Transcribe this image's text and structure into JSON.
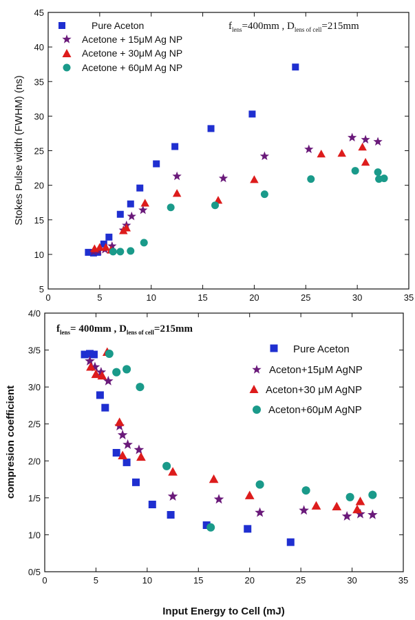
{
  "colors": {
    "square": "#1f2fd0",
    "star": "#6a1a7a",
    "triangle": "#dd1c1c",
    "circle": "#1a9a8a"
  },
  "chart_data": [
    {
      "type": "scatter",
      "xlabel": "",
      "ylabel": "Stokes Pulse width (FWHM) (ns)",
      "xlim": [
        0,
        35
      ],
      "ylim": [
        5,
        45
      ],
      "xticks": [
        "0",
        "5",
        "10",
        "15",
        "20",
        "25",
        "30",
        "35"
      ],
      "yticks": [
        "5",
        "10",
        "15",
        "20",
        "25",
        "30",
        "35",
        "40",
        "45"
      ],
      "annotation": {
        "f_letter": "f",
        "f_sub": "lens",
        "f_value": "=400mm , ",
        "d_letter": "D",
        "d_sub": "lens of cell",
        "d_value": "=215mm"
      },
      "legend_position": "top-left",
      "series": [
        {
          "name": "Pure Aceton",
          "marker": "square",
          "x": [
            3.9,
            4.4,
            4.8,
            5.4,
            5.9,
            7.0,
            8.0,
            8.9,
            10.5,
            12.3,
            15.8,
            19.8,
            24.0
          ],
          "y": [
            10.3,
            10.2,
            10.3,
            11.5,
            12.5,
            15.8,
            17.3,
            19.6,
            23.1,
            25.6,
            28.2,
            30.3,
            37.1
          ]
        },
        {
          "name": "Acetone + 15μM Ag NP",
          "marker": "star",
          "x": [
            4.4,
            4.9,
            5.5,
            6.2,
            7.3,
            7.6,
            8.1,
            9.2,
            12.5,
            17.0,
            21.0,
            25.3,
            29.5,
            30.8,
            32.0
          ],
          "y": [
            10.4,
            10.5,
            10.7,
            11.2,
            13.5,
            14.2,
            15.5,
            16.4,
            21.3,
            21.0,
            24.2,
            25.2,
            26.9,
            26.6,
            26.3
          ]
        },
        {
          "name": "Acetone + 30μM Ag NP",
          "marker": "triangle",
          "x": [
            4.5,
            5.0,
            5.6,
            6.1,
            7.3,
            7.6,
            9.4,
            12.5,
            16.5,
            20.0,
            26.5,
            28.5,
            30.5,
            30.8
          ],
          "y": [
            10.8,
            11.0,
            11.0,
            10.6,
            13.4,
            13.8,
            17.4,
            18.8,
            17.8,
            20.8,
            24.5,
            24.6,
            25.5,
            23.3
          ]
        },
        {
          "name": "Acetone + 60μM Ag NP",
          "marker": "circle",
          "x": [
            6.3,
            7.0,
            8.0,
            9.3,
            11.9,
            16.2,
            21.0,
            25.5,
            29.8,
            32.0,
            32.1,
            32.6
          ],
          "y": [
            10.4,
            10.4,
            10.5,
            11.7,
            16.8,
            17.1,
            18.7,
            20.9,
            22.1,
            21.9,
            20.9,
            21.0
          ]
        }
      ]
    },
    {
      "type": "scatter",
      "xlabel": "Input Energy to Cell (mJ)",
      "ylabel": "compresion coefficient",
      "xlim": [
        0,
        35
      ],
      "ylim": [
        0.5,
        4.0
      ],
      "xticks": [
        "0",
        "5",
        "10",
        "15",
        "20",
        "25",
        "30",
        "35"
      ],
      "yticks": [
        "0/5",
        "1/0",
        "1/5",
        "2/0",
        "2/5",
        "3/0",
        "3/5",
        "4/0"
      ],
      "annotation": {
        "f_letter": "f",
        "f_sub": "lens",
        "f_value": "= 400mm , ",
        "d_letter": "D",
        "d_sub": "lens of cell",
        "d_value": "=215mm"
      },
      "legend_position": "top-right",
      "series": [
        {
          "name": "Pure Aceton",
          "marker": "square",
          "x": [
            3.9,
            4.4,
            4.8,
            5.4,
            5.9,
            7.0,
            8.0,
            8.9,
            10.5,
            12.3,
            15.8,
            19.8,
            24.0
          ],
          "y": [
            3.44,
            3.45,
            3.44,
            2.89,
            2.72,
            2.11,
            1.98,
            1.71,
            1.41,
            1.27,
            1.13,
            1.08,
            0.9
          ]
        },
        {
          "name": "Aceton+15μM AgNP",
          "marker": "star",
          "x": [
            4.4,
            4.9,
            5.5,
            6.2,
            7.3,
            7.6,
            8.1,
            9.2,
            12.5,
            17.0,
            21.0,
            25.3,
            29.5,
            30.8,
            32.0
          ],
          "y": [
            3.35,
            3.27,
            3.2,
            3.08,
            2.47,
            2.35,
            2.22,
            2.15,
            1.52,
            1.48,
            1.3,
            1.33,
            1.25,
            1.28,
            1.27
          ]
        },
        {
          "name": "Aceton+30 μM AgNP",
          "marker": "triangle",
          "x": [
            4.5,
            5.0,
            5.6,
            6.1,
            7.3,
            7.6,
            9.4,
            12.5,
            16.5,
            20.0,
            26.5,
            28.5,
            30.5,
            30.8
          ],
          "y": [
            3.27,
            3.17,
            3.15,
            3.47,
            2.52,
            2.07,
            2.05,
            1.85,
            1.75,
            1.53,
            1.39,
            1.38,
            1.34,
            1.45
          ]
        },
        {
          "name": "Aceton+60μM AgNP",
          "marker": "circle",
          "x": [
            6.3,
            7.0,
            8.0,
            9.3,
            11.9,
            16.2,
            21.0,
            25.5,
            29.8,
            32.0
          ],
          "y": [
            3.45,
            3.2,
            3.24,
            3.0,
            1.93,
            1.1,
            1.68,
            1.6,
            1.51,
            1.54
          ]
        }
      ]
    }
  ]
}
